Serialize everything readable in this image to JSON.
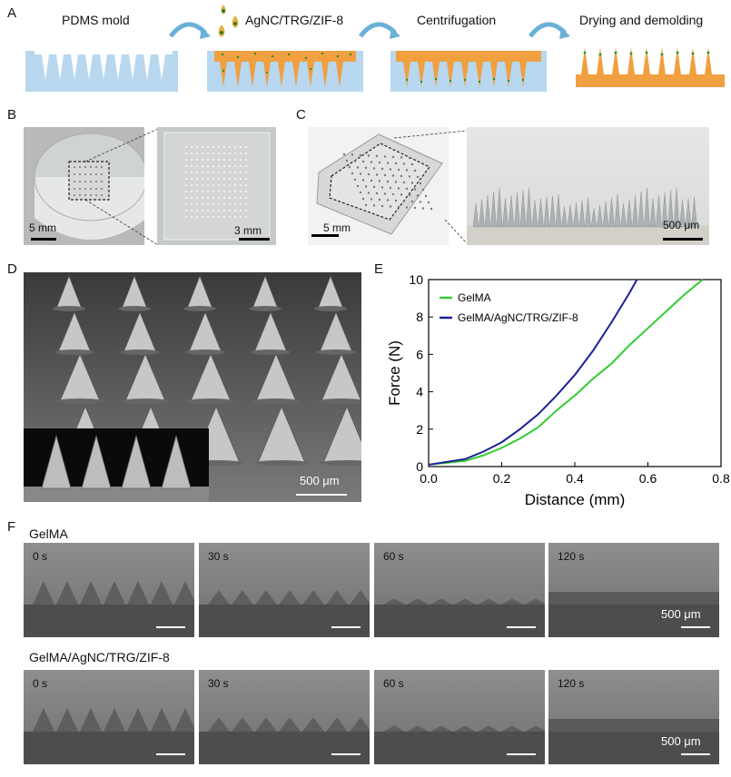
{
  "panels": {
    "A": "A",
    "B": "B",
    "C": "C",
    "D": "D",
    "E": "E",
    "F": "F"
  },
  "fabrication_steps": [
    "PDMS mold",
    "AgNC/TRG/ZIF-8",
    "Centrifugation",
    "Drying and demolding"
  ],
  "panel_b": {
    "left_scale": "5 mm",
    "right_scale": "3 mm"
  },
  "panel_c": {
    "left_scale": "5 mm",
    "right_scale": "500 μm"
  },
  "panel_d": {
    "scale": "500 μm"
  },
  "chart_data": {
    "type": "line",
    "xlabel": "Distance (mm)",
    "ylabel": "Force (N)",
    "xlim": [
      0.0,
      0.8
    ],
    "ylim": [
      0,
      10
    ],
    "xticks": [
      "0.0",
      "0.2",
      "0.4",
      "0.6",
      "0.8"
    ],
    "yticks": [
      "0",
      "2",
      "4",
      "6",
      "8",
      "10"
    ],
    "legend_position": "top-left",
    "series": [
      {
        "name": "GelMA",
        "color": "#33cc33",
        "x": [
          0.0,
          0.1,
          0.15,
          0.2,
          0.25,
          0.3,
          0.35,
          0.4,
          0.45,
          0.5,
          0.55,
          0.6,
          0.65,
          0.7,
          0.75
        ],
        "y": [
          0.1,
          0.3,
          0.6,
          1.0,
          1.5,
          2.1,
          3.0,
          3.8,
          4.7,
          5.5,
          6.5,
          7.4,
          8.3,
          9.2,
          10.0
        ]
      },
      {
        "name": "GelMA/AgNC/TRG/ZIF-8",
        "color": "#1f1f99",
        "x": [
          0.0,
          0.1,
          0.15,
          0.2,
          0.25,
          0.3,
          0.35,
          0.4,
          0.45,
          0.5,
          0.55,
          0.57
        ],
        "y": [
          0.1,
          0.4,
          0.8,
          1.3,
          2.0,
          2.8,
          3.8,
          4.9,
          6.2,
          7.7,
          9.3,
          10.0
        ]
      }
    ]
  },
  "panel_f": {
    "row1_label": "GelMA",
    "row2_label": "GelMA/AgNC/TRG/ZIF-8",
    "times": [
      "0 s",
      "30 s",
      "60 s",
      "120 s"
    ],
    "scale": "500 μm"
  }
}
